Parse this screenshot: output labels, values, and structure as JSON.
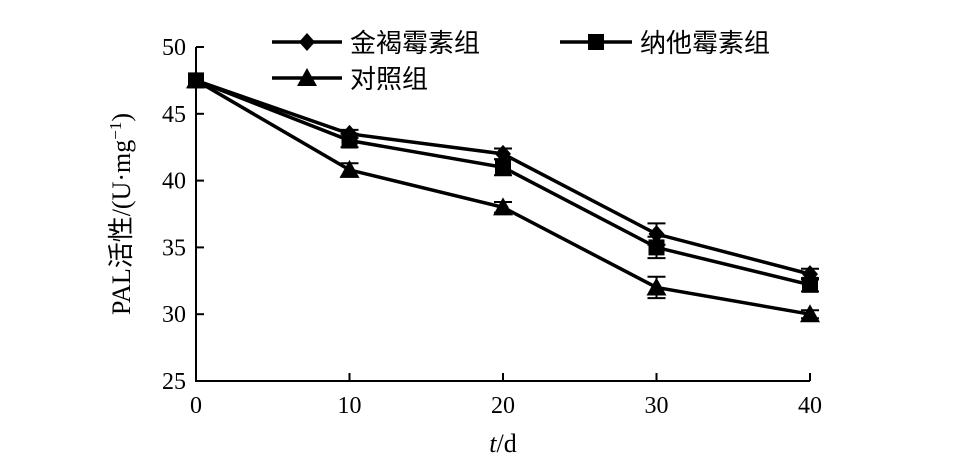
{
  "chart_data": {
    "type": "line",
    "x": [
      0,
      10,
      20,
      30,
      40
    ],
    "xlim": [
      0,
      40
    ],
    "ylim": [
      25,
      50
    ],
    "xticks": [
      "0",
      "10",
      "20",
      "30",
      "40"
    ],
    "yticks": [
      "25",
      "30",
      "35",
      "40",
      "45",
      "50"
    ],
    "xlabel_italic": "t",
    "xlabel_rest": "/d",
    "ylabel_main": "PAL活性/(U·mg",
    "ylabel_sup": "−1",
    "ylabel_end": ")",
    "grid": false,
    "legend_position": "top",
    "series": [
      {
        "name": "金褐霉素组",
        "marker": "diamond",
        "values": [
          47.5,
          43.5,
          42.0,
          36.0,
          33.0
        ],
        "errors": [
          0,
          0.3,
          0.4,
          0.8,
          0.4
        ]
      },
      {
        "name": "纳他霉素组",
        "marker": "square",
        "values": [
          47.5,
          43.0,
          41.0,
          35.0,
          32.2
        ],
        "errors": [
          0,
          0.5,
          0.6,
          0.8,
          0.5
        ]
      },
      {
        "name": "对照组",
        "marker": "triangle",
        "values": [
          47.5,
          40.8,
          38.0,
          32.0,
          30.0
        ],
        "errors": [
          0,
          0.5,
          0.4,
          0.8,
          0.3
        ]
      }
    ]
  }
}
